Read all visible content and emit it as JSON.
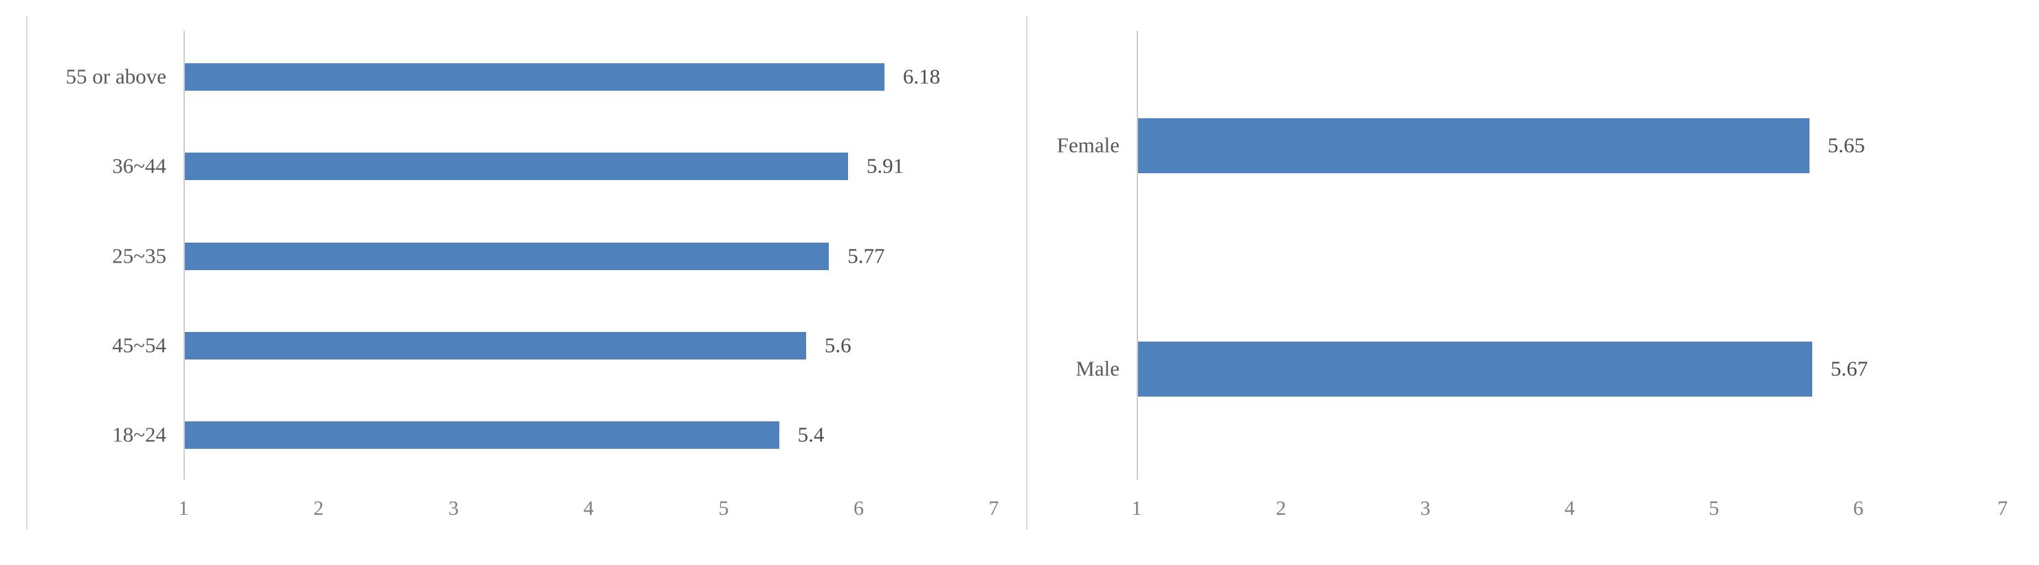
{
  "page": {
    "background": "#ffffff"
  },
  "colors": {
    "bar": "#4f81bd",
    "axis_line": "#cccccc",
    "panel_border": "#d8d8d8",
    "category_label": "#595959",
    "value_label": "#4d4d4d",
    "tick_label": "#7f7f7f"
  },
  "chart_data": [
    {
      "type": "bar",
      "orientation": "horizontal",
      "title": "",
      "categories": [
        "55 or above",
        "36~44",
        "25~35",
        "45~54",
        "18~24"
      ],
      "values": [
        6.18,
        5.91,
        5.77,
        5.6,
        5.4
      ],
      "value_labels": [
        "6.18",
        "5.91",
        "5.77",
        "5.6",
        "5.4"
      ],
      "x_ticks": [
        "1",
        "2",
        "3",
        "4",
        "5",
        "6",
        "7"
      ],
      "xlim": [
        1,
        7
      ],
      "ylabel": "",
      "xlabel": "",
      "legend": "none",
      "grid": "off"
    },
    {
      "type": "bar",
      "orientation": "horizontal",
      "title": "",
      "categories": [
        "Female",
        "Male"
      ],
      "values": [
        5.65,
        5.67
      ],
      "value_labels": [
        "5.65",
        "5.67"
      ],
      "x_ticks": [
        "1",
        "2",
        "3",
        "4",
        "5",
        "6",
        "7"
      ],
      "xlim": [
        1,
        7
      ],
      "ylabel": "",
      "xlabel": "",
      "legend": "none",
      "grid": "off"
    }
  ]
}
